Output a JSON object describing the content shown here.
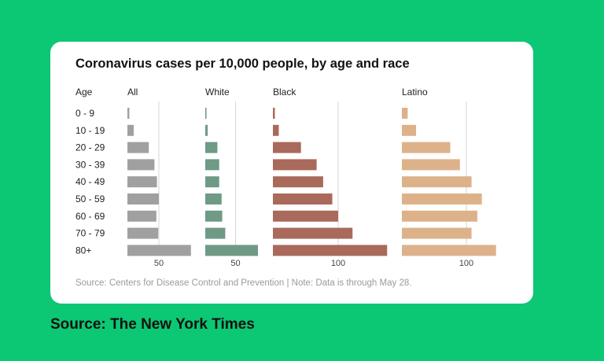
{
  "card": {
    "title": "Coronavirus cases per 10,000 people, by age and race",
    "source_note": "Source: Centers for Disease Control and Prevention | Note: Data is through May 28."
  },
  "credit": "Source: The New York Times",
  "chart_data": {
    "type": "bar",
    "orientation": "horizontal",
    "title": "Coronavirus cases per 10,000 people, by age and race",
    "category_label": "Age",
    "categories": [
      "0 - 9",
      "10 - 19",
      "20 - 29",
      "30 - 39",
      "40 - 49",
      "50 - 59",
      "60 - 69",
      "70 - 79",
      "80+"
    ],
    "series": [
      {
        "name": "All",
        "color": "#a0a0a0",
        "tick": 50,
        "tick_label": "50",
        "values": [
          3,
          10,
          34,
          43,
          47,
          50,
          46,
          49,
          101
        ]
      },
      {
        "name": "White",
        "color": "#6f9a85",
        "tick": 50,
        "tick_label": "50",
        "values": [
          2,
          4,
          20,
          23,
          23,
          27,
          28,
          33,
          87
        ]
      },
      {
        "name": "Black",
        "color": "#a96a5b",
        "tick": 100,
        "tick_label": "100",
        "values": [
          3,
          9,
          43,
          67,
          77,
          91,
          100,
          122,
          175
        ]
      },
      {
        "name": "Latino",
        "color": "#ddb28b",
        "tick": 100,
        "tick_label": "100",
        "values": [
          9,
          22,
          75,
          90,
          108,
          124,
          117,
          108,
          146
        ]
      }
    ]
  }
}
